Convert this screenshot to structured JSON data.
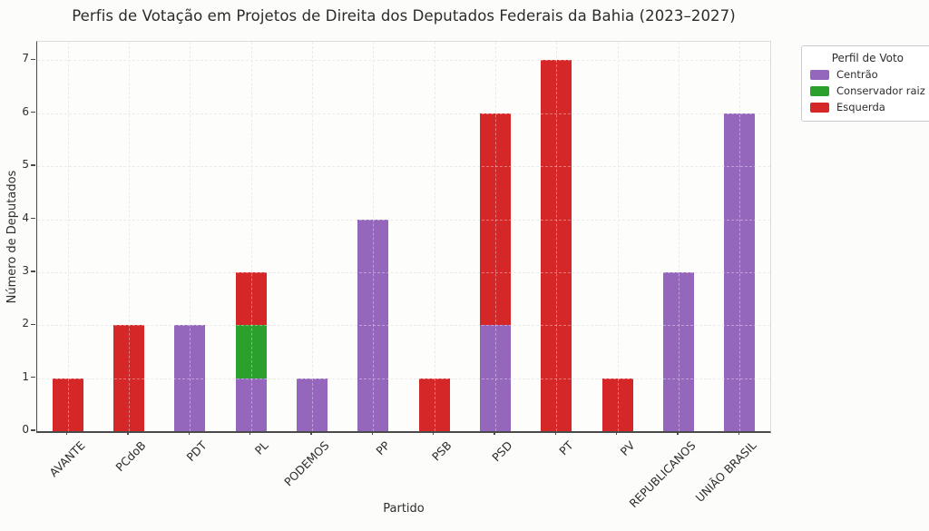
{
  "chart_data": {
    "type": "bar",
    "stacked": true,
    "title": "Perfis de Votação em Projetos de Direita dos Deputados Federais da Bahia (2023–2027)",
    "xlabel": "Partido",
    "ylabel": "Número de Deputados",
    "categories": [
      "AVANTE",
      "PCdoB",
      "PDT",
      "PL",
      "PODEMOS",
      "PP",
      "PSB",
      "PSD",
      "PT",
      "PV",
      "REPUBLICANOS",
      "UNIÃO BRASIL"
    ],
    "series": [
      {
        "name": "Centrão",
        "color": "#9467bd",
        "values": [
          0,
          0,
          2,
          1,
          1,
          4,
          0,
          2,
          0,
          0,
          3,
          6
        ]
      },
      {
        "name": "Conservador raiz",
        "color": "#2ca02c",
        "values": [
          0,
          0,
          0,
          1,
          0,
          0,
          0,
          0,
          0,
          0,
          0,
          0
        ]
      },
      {
        "name": "Esquerda",
        "color": "#d62728",
        "values": [
          1,
          2,
          0,
          1,
          0,
          0,
          1,
          4,
          7,
          1,
          0,
          0
        ]
      }
    ],
    "totals": [
      1,
      2,
      2,
      3,
      1,
      4,
      1,
      6,
      7,
      1,
      3,
      6
    ],
    "yticks": [
      0,
      1,
      2,
      3,
      4,
      5,
      6,
      7
    ],
    "ylim": [
      0,
      7.35
    ],
    "grid": true,
    "legend": {
      "title": "Perfil de Voto",
      "position": "outside-top-right",
      "entries": [
        "Centrão",
        "Conservador raiz",
        "Esquerda"
      ]
    }
  }
}
